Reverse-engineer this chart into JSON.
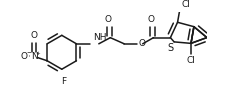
{
  "bg_color": "#ffffff",
  "line_color": "#1a1a1a",
  "lw": 1.1,
  "fs": 6.5,
  "fig_w": 2.31,
  "fig_h": 1.02,
  "dpi": 100,
  "xlim": [
    0,
    231
  ],
  "ylim": [
    0,
    102
  ]
}
